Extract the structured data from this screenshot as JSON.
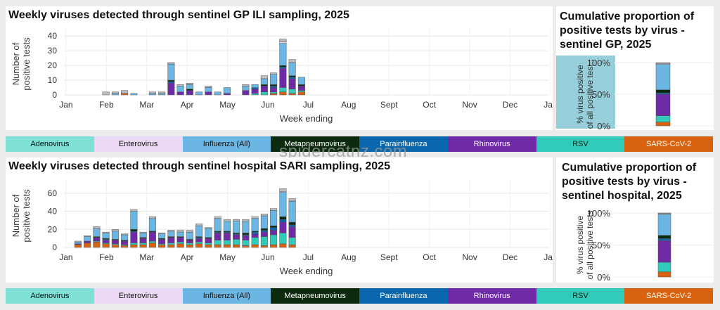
{
  "watermark": "spidercatnz.com",
  "legend": [
    {
      "label": "Adenovirus",
      "color": "#7fe0d5",
      "text": "#111"
    },
    {
      "label": "Enterovirus",
      "color": "#ead8f4",
      "text": "#111"
    },
    {
      "label": "Influenza (All)",
      "color": "#6cb6e4",
      "text": "#111"
    },
    {
      "label": "Metapneumovirus",
      "color": "#0b2a0e",
      "text": "#ffffff"
    },
    {
      "label": "Parainfluenza",
      "color": "#0a67ad",
      "text": "#ffffff"
    },
    {
      "label": "Rhinovirus",
      "color": "#6f2aa5",
      "text": "#ffffff"
    },
    {
      "label": "RSV",
      "color": "#30cbb9",
      "text": "#111"
    },
    {
      "label": "SARS-CoV-2",
      "color": "#d8620f",
      "text": "#ffffff"
    }
  ],
  "chart_data": [
    {
      "id": "gp",
      "type": "bar",
      "stacked": true,
      "title": "Weekly viruses detected through sentinel GP ILI sampling, 2025",
      "xlabel": "Week ending",
      "ylabel": "Number of positive tests",
      "ylim": [
        0,
        42
      ],
      "yticks": [
        0,
        10,
        20,
        30,
        40
      ],
      "x_range_weeks": [
        0,
        52
      ],
      "xticks": [
        "Jan",
        "Feb",
        "Mar",
        "Apr",
        "May",
        "Jun",
        "Jul",
        "Aug",
        "Sept",
        "Oct",
        "Nov",
        "Dec",
        "Jan"
      ],
      "series_order": [
        "SARS-CoV-2",
        "RSV",
        "Rhinovirus",
        "Parainfluenza",
        "Metapneumovirus",
        "Influenza (All)",
        "Enterovirus",
        "Adenovirus"
      ],
      "other_color": "#bdbdbd",
      "weeks": [
        {
          "week": 4.5,
          "segs": [
            0,
            0,
            0,
            0,
            0,
            0,
            0,
            0,
            2
          ]
        },
        {
          "week": 5.5,
          "segs": [
            0,
            0,
            0,
            0,
            0,
            1,
            0,
            0,
            1
          ]
        },
        {
          "week": 6.5,
          "segs": [
            1,
            0,
            0,
            0,
            0,
            0,
            0,
            0,
            2
          ]
        },
        {
          "week": 7.5,
          "segs": [
            0,
            0,
            0,
            0,
            0,
            1,
            0,
            0,
            0
          ]
        },
        {
          "week": 9.5,
          "segs": [
            0,
            0,
            0,
            0,
            0,
            1,
            0,
            0,
            1
          ]
        },
        {
          "week": 10.5,
          "segs": [
            0,
            0,
            0,
            0,
            0,
            1,
            0,
            0,
            1
          ]
        },
        {
          "week": 11.5,
          "segs": [
            0,
            0,
            8,
            1,
            1,
            11,
            0,
            0,
            1
          ]
        },
        {
          "week": 12.5,
          "segs": [
            0,
            0,
            2,
            0,
            0,
            4,
            0,
            0,
            1
          ]
        },
        {
          "week": 13.5,
          "segs": [
            0,
            0,
            3,
            0,
            1,
            3,
            0,
            0,
            1
          ]
        },
        {
          "week": 14.5,
          "segs": [
            0,
            0,
            0,
            0,
            0,
            2,
            0,
            0,
            0
          ]
        },
        {
          "week": 15.5,
          "segs": [
            0,
            0,
            2,
            0,
            0,
            3,
            0,
            0,
            1
          ]
        },
        {
          "week": 16.5,
          "segs": [
            0,
            0,
            0,
            0,
            0,
            2,
            0,
            0,
            0
          ]
        },
        {
          "week": 17.5,
          "segs": [
            0,
            0,
            1,
            0,
            0,
            4,
            0,
            0,
            0
          ]
        },
        {
          "week": 19.5,
          "segs": [
            0,
            0,
            3,
            0,
            0,
            3,
            0,
            0,
            1
          ]
        },
        {
          "week": 20.5,
          "segs": [
            0,
            1,
            3,
            1,
            0,
            2,
            0,
            0,
            0
          ]
        },
        {
          "week": 21.5,
          "segs": [
            0,
            2,
            4,
            0,
            1,
            4,
            0,
            0,
            2
          ]
        },
        {
          "week": 22.5,
          "segs": [
            1,
            1,
            3,
            1,
            1,
            7,
            0,
            0,
            1
          ]
        },
        {
          "week": 23.5,
          "segs": [
            2,
            3,
            13,
            1,
            1,
            15,
            1,
            0,
            2
          ]
        },
        {
          "week": 24.5,
          "segs": [
            1,
            3,
            7,
            1,
            1,
            9,
            0,
            0,
            2
          ]
        },
        {
          "week": 25.5,
          "segs": [
            2,
            1,
            3,
            0,
            1,
            5,
            0,
            0,
            0
          ]
        }
      ],
      "cumulative_title": "Cumulative proportion of positive tests by virus - sentinel GP, 2025",
      "cumulative_ylabel": "% virus positive of all positive tes...",
      "cumulative_yticks": [
        "0%",
        "50%",
        "100%"
      ],
      "cumulative": [
        6,
        10,
        34,
        2,
        5,
        40,
        1,
        0,
        2
      ]
    },
    {
      "id": "hosp",
      "type": "bar",
      "stacked": true,
      "title": "Weekly viruses detected through sentinel hospital SARI sampling, 2025",
      "xlabel": "Week ending",
      "ylabel": "Number of positive tests",
      "ylim": [
        0,
        70
      ],
      "yticks": [
        0,
        20,
        40,
        60
      ],
      "x_range_weeks": [
        0,
        52
      ],
      "xticks": [
        "Jan",
        "Feb",
        "Mar",
        "Apr",
        "May",
        "Jun",
        "Jul",
        "Aug",
        "Sept",
        "Oct",
        "Nov",
        "Dec",
        "Jan"
      ],
      "series_order": [
        "SARS-CoV-2",
        "RSV",
        "Rhinovirus",
        "Parainfluenza",
        "Metapneumovirus",
        "Influenza (All)",
        "Enterovirus",
        "Adenovirus"
      ],
      "other_color": "#bdbdbd",
      "weeks": [
        {
          "week": 1.5,
          "segs": [
            3,
            0,
            1,
            0,
            0,
            2,
            0,
            0,
            1
          ]
        },
        {
          "week": 2.5,
          "segs": [
            5,
            0,
            2,
            0,
            0,
            5,
            0,
            0,
            1
          ]
        },
        {
          "week": 3.5,
          "segs": [
            6,
            1,
            4,
            0,
            1,
            9,
            0,
            0,
            2
          ]
        },
        {
          "week": 4.5,
          "segs": [
            4,
            1,
            3,
            1,
            1,
            6,
            0,
            0,
            1
          ]
        },
        {
          "week": 5.5,
          "segs": [
            3,
            1,
            4,
            0,
            1,
            9,
            0,
            0,
            2
          ]
        },
        {
          "week": 6.5,
          "segs": [
            2,
            1,
            4,
            0,
            1,
            6,
            0,
            0,
            1
          ]
        },
        {
          "week": 7.5,
          "segs": [
            3,
            2,
            12,
            1,
            2,
            20,
            0,
            0,
            2
          ]
        },
        {
          "week": 8.5,
          "segs": [
            3,
            2,
            5,
            0,
            1,
            5,
            0,
            0,
            1
          ]
        },
        {
          "week": 9.5,
          "segs": [
            5,
            2,
            10,
            0,
            1,
            14,
            0,
            0,
            2
          ]
        },
        {
          "week": 10.5,
          "segs": [
            3,
            1,
            5,
            0,
            1,
            5,
            0,
            0,
            1
          ]
        },
        {
          "week": 11.5,
          "segs": [
            3,
            2,
            6,
            0,
            1,
            6,
            0,
            0,
            1
          ]
        },
        {
          "week": 12.5,
          "segs": [
            4,
            2,
            5,
            0,
            1,
            5,
            0,
            0,
            2
          ]
        },
        {
          "week": 13.5,
          "segs": [
            3,
            2,
            3,
            0,
            1,
            8,
            0,
            0,
            2
          ]
        },
        {
          "week": 14.5,
          "segs": [
            4,
            2,
            4,
            1,
            1,
            12,
            0,
            0,
            2
          ]
        },
        {
          "week": 15.5,
          "segs": [
            3,
            2,
            5,
            0,
            1,
            10,
            0,
            0,
            1
          ]
        },
        {
          "week": 16.5,
          "segs": [
            3,
            5,
            8,
            1,
            1,
            14,
            0,
            0,
            2
          ]
        },
        {
          "week": 17.5,
          "segs": [
            3,
            5,
            8,
            1,
            1,
            11,
            0,
            0,
            2
          ]
        },
        {
          "week": 18.5,
          "segs": [
            3,
            6,
            5,
            1,
            1,
            13,
            0,
            0,
            2
          ]
        },
        {
          "week": 19.5,
          "segs": [
            2,
            6,
            5,
            1,
            2,
            13,
            0,
            0,
            2
          ]
        },
        {
          "week": 20.5,
          "segs": [
            3,
            8,
            4,
            2,
            1,
            14,
            0,
            0,
            2
          ]
        },
        {
          "week": 21.5,
          "segs": [
            2,
            10,
            5,
            2,
            2,
            14,
            0,
            0,
            2
          ]
        },
        {
          "week": 22.5,
          "segs": [
            3,
            11,
            5,
            3,
            2,
            17,
            0,
            0,
            2
          ]
        },
        {
          "week": 23.5,
          "segs": [
            4,
            12,
            12,
            3,
            3,
            27,
            1,
            0,
            3
          ]
        },
        {
          "week": 24.5,
          "segs": [
            3,
            8,
            12,
            2,
            3,
            23,
            1,
            0,
            2
          ]
        }
      ],
      "cumulative_title": "Cumulative proportion of positive tests by virus - sentinel hospital, 2025",
      "cumulative_ylabel": "% virus positive of all positive tests",
      "cumulative_yticks": [
        "0%",
        "50%",
        "100%"
      ],
      "cumulative": [
        8,
        15,
        34,
        3,
        5,
        33,
        1,
        0,
        1
      ]
    }
  ]
}
